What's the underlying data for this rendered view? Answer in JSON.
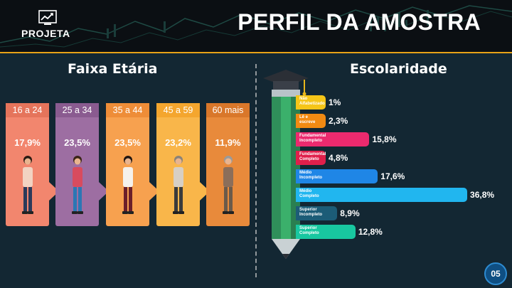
{
  "header": {
    "logo_text": "PROJETA",
    "title": "PERFIL DA AMOSTRA"
  },
  "sections": {
    "age_title": "Faixa Etária",
    "education_title": "Escolaridade"
  },
  "colors": {
    "accent": "#e8a317",
    "background": "#132733",
    "header_bg": "#0b0f13"
  },
  "chart_data": [
    {
      "type": "bar",
      "title": "Faixa Etária",
      "categories": [
        "16 a 24",
        "25 a 34",
        "35 a 44",
        "45 a 59",
        "60 mais"
      ],
      "values": [
        17.9,
        23.5,
        23.5,
        23.2,
        11.9
      ],
      "value_labels": [
        "17,9%",
        "23,5%",
        "23,5%",
        "23,2%",
        "11,9%"
      ],
      "colors": [
        "#f2866e",
        "#9d6ea2",
        "#f7a14f",
        "#f9b64a",
        "#e88a3b"
      ],
      "head_colors": [
        "#e5745b",
        "#8a5b90",
        "#ee8d38",
        "#f4a62e",
        "#d9772a"
      ]
    },
    {
      "type": "bar",
      "title": "Escolaridade",
      "categories": [
        "Não\nAlfabetizado",
        "Lê e\nescreve",
        "Fundamental\nIncompleto",
        "Fundamental\nCompleto",
        "Médio\nIncompleto",
        "Médio\nCompleto",
        "Superior\nIncompleto",
        "Superior\nCompleto"
      ],
      "values": [
        1,
        2.3,
        15.8,
        4.8,
        17.6,
        36.8,
        8.9,
        12.8
      ],
      "value_labels": [
        "1%",
        "2,3%",
        "15,8%",
        "4,8%",
        "17,6%",
        "36,8%",
        "8,9%",
        "12,8%"
      ],
      "colors": [
        "#f5c518",
        "#f28a12",
        "#ec2a6e",
        "#e01f4b",
        "#1f86e6",
        "#21b6ef",
        "#1c5c77",
        "#18c7a0"
      ],
      "xlim": [
        0,
        40
      ]
    }
  ],
  "page_number": "05"
}
